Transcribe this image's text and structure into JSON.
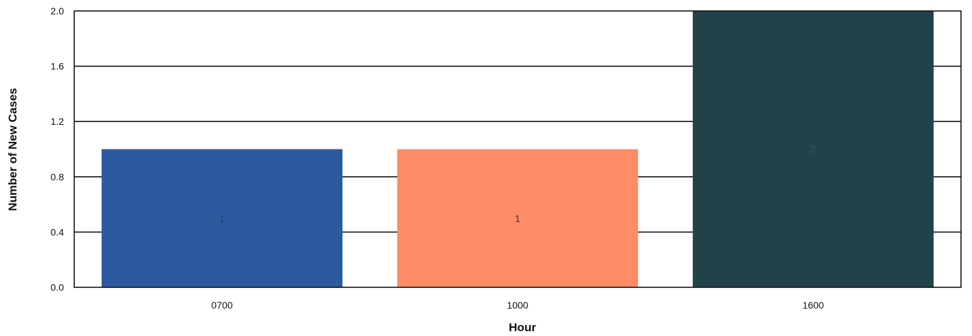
{
  "chart_data": {
    "type": "bar",
    "title": "",
    "xlabel": "Hour",
    "ylabel": "Number of New Cases",
    "categories": [
      "0700",
      "1000",
      "1600"
    ],
    "values": [
      1,
      1,
      2
    ],
    "data_labels": [
      "1",
      "1",
      "2"
    ],
    "bar_colors": [
      "#2C5A9E",
      "#FF8C66",
      "#22424A"
    ],
    "data_label_colors": [
      "#1e3f73",
      "#333333",
      "#35555c"
    ],
    "ylim": [
      0,
      2
    ],
    "yticks": [
      "0.0",
      "0.4",
      "0.8",
      "1.2",
      "1.6",
      "2.0"
    ],
    "ytick_values": [
      0,
      0.4,
      0.8,
      1.2,
      1.6,
      2.0
    ],
    "grid": true,
    "legend": "none"
  }
}
